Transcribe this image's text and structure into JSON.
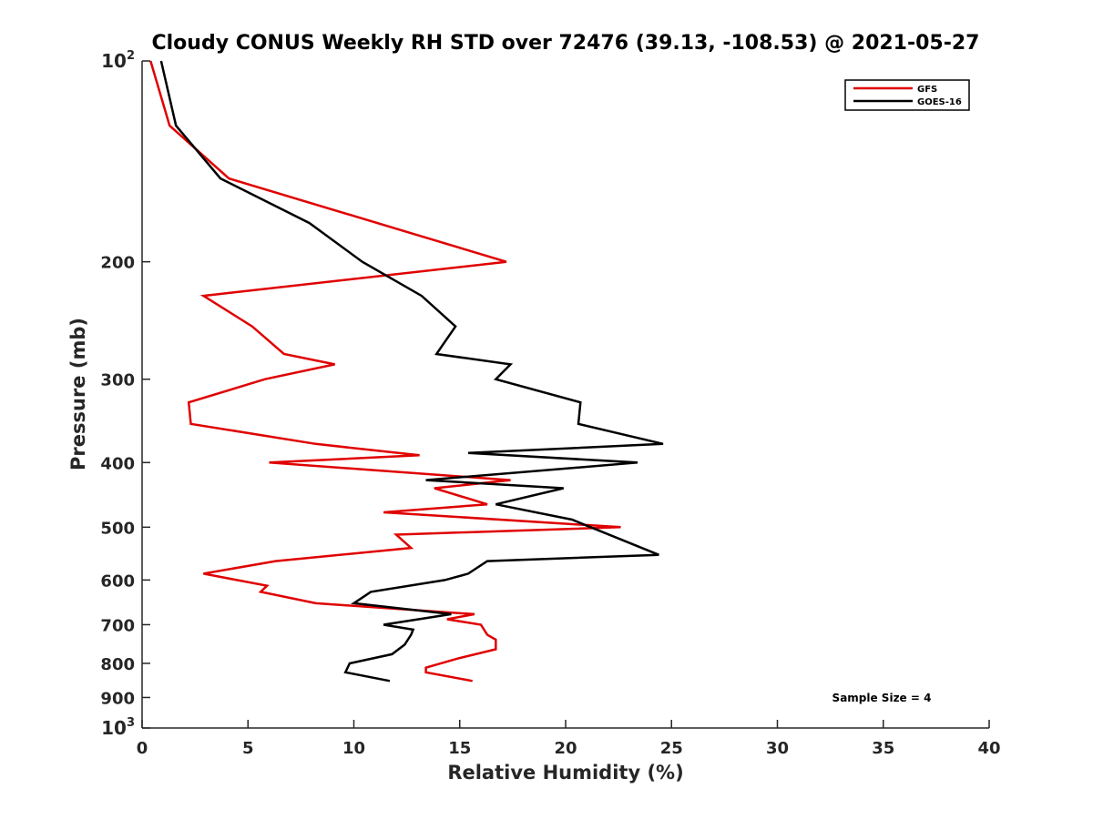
{
  "chart_data": {
    "type": "line",
    "title": "Cloudy CONUS Weekly RH STD over 72476 (39.13, -108.53) @ 2021-05-27",
    "xlabel": "Relative Humidity (%)",
    "ylabel": "Pressure (mb)",
    "xlim": [
      0,
      40
    ],
    "ylim": [
      100,
      1000
    ],
    "y_scale": "log",
    "y_reversed": true,
    "grid": false,
    "legend_position": "top-right",
    "x_ticks": [
      "0",
      "5",
      "10",
      "15",
      "20",
      "25",
      "30",
      "35",
      "40"
    ],
    "y_ticks": [
      {
        "value": 100,
        "base": "10",
        "exp": "2"
      },
      {
        "value": 200,
        "label": "200"
      },
      {
        "value": 300,
        "label": "300"
      },
      {
        "value": 400,
        "label": "400"
      },
      {
        "value": 500,
        "label": "500"
      },
      {
        "value": 600,
        "label": "600"
      },
      {
        "value": 700,
        "label": "700"
      },
      {
        "value": 800,
        "label": "800"
      },
      {
        "value": 900,
        "label": "900"
      },
      {
        "value": 1000,
        "base": "10",
        "exp": "3"
      }
    ],
    "annotation": "Sample Size = 4",
    "series": [
      {
        "name": "GFS",
        "color": "#e00000",
        "points": [
          [
            0.4,
            100
          ],
          [
            1.3,
            125
          ],
          [
            4.1,
            150
          ],
          [
            17.2,
            200
          ],
          [
            2.9,
            225
          ],
          [
            5.2,
            250
          ],
          [
            6.7,
            275
          ],
          [
            9.1,
            285
          ],
          [
            5.8,
            300
          ],
          [
            2.2,
            325
          ],
          [
            2.3,
            350
          ],
          [
            8.2,
            375
          ],
          [
            13.1,
            390
          ],
          [
            6.0,
            400
          ],
          [
            17.4,
            425
          ],
          [
            13.8,
            437
          ],
          [
            16.3,
            462
          ],
          [
            11.4,
            475
          ],
          [
            22.6,
            500
          ],
          [
            12.0,
            513
          ],
          [
            12.7,
            537
          ],
          [
            6.3,
            562
          ],
          [
            2.9,
            587
          ],
          [
            5.9,
            612
          ],
          [
            5.6,
            625
          ],
          [
            8.2,
            650
          ],
          [
            15.7,
            675
          ],
          [
            14.4,
            687
          ],
          [
            16.0,
            700
          ],
          [
            16.3,
            725
          ],
          [
            16.7,
            737
          ],
          [
            16.7,
            762
          ],
          [
            14.9,
            787
          ],
          [
            13.4,
            812
          ],
          [
            13.4,
            825
          ],
          [
            15.6,
            850
          ]
        ]
      },
      {
        "name": "GOES-16",
        "color": "#000000",
        "points": [
          [
            0.9,
            100
          ],
          [
            1.6,
            125
          ],
          [
            3.7,
            150
          ],
          [
            7.9,
            175
          ],
          [
            10.4,
            200
          ],
          [
            13.2,
            225
          ],
          [
            14.8,
            250
          ],
          [
            13.9,
            275
          ],
          [
            17.4,
            285
          ],
          [
            16.7,
            300
          ],
          [
            20.7,
            325
          ],
          [
            20.6,
            350
          ],
          [
            24.6,
            375
          ],
          [
            15.4,
            387
          ],
          [
            23.4,
            400
          ],
          [
            13.4,
            425
          ],
          [
            19.9,
            437
          ],
          [
            16.7,
            462
          ],
          [
            20.3,
            487
          ],
          [
            24.4,
            550
          ],
          [
            16.3,
            562
          ],
          [
            15.4,
            587
          ],
          [
            14.3,
            600
          ],
          [
            10.8,
            625
          ],
          [
            10.0,
            650
          ],
          [
            14.6,
            675
          ],
          [
            11.4,
            700
          ],
          [
            12.8,
            712
          ],
          [
            12.7,
            725
          ],
          [
            12.4,
            750
          ],
          [
            11.8,
            775
          ],
          [
            9.8,
            800
          ],
          [
            9.6,
            825
          ],
          [
            11.7,
            850
          ]
        ]
      }
    ]
  }
}
